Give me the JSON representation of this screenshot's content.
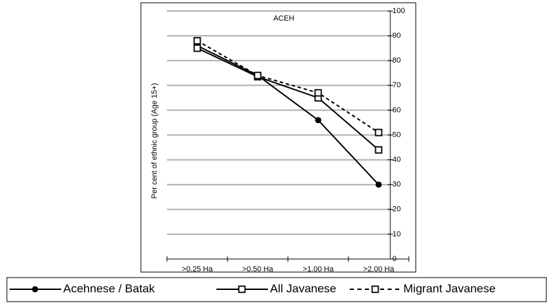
{
  "chart_data": {
    "type": "line",
    "title": "ACEH",
    "y_label": "Per cent of ethnic group (Age 15+)",
    "categories": [
      ">0.25 Ha",
      ">0.50 Ha",
      ">1.00 Ha",
      ">2.00 Ha"
    ],
    "series": [
      {
        "name": "Acehnese / Batak",
        "color": "#000000",
        "marker": "filled-circle",
        "dash": "solid",
        "values": [
          86,
          74,
          56,
          30
        ]
      },
      {
        "name": "All Javanese",
        "color": "#000000",
        "marker": "open-square",
        "dash": "solid",
        "values": [
          85,
          73.5,
          65,
          44
        ]
      },
      {
        "name": "Migrant Javanese",
        "color": "#000000",
        "marker": "open-square",
        "dash": "dashed",
        "values": [
          88,
          74,
          67,
          51
        ]
      }
    ],
    "ylim": [
      0,
      100
    ],
    "yticks": [
      0,
      10,
      20,
      30,
      40,
      50,
      60,
      70,
      80,
      90,
      100
    ],
    "grid": true,
    "legend": "bottom"
  }
}
